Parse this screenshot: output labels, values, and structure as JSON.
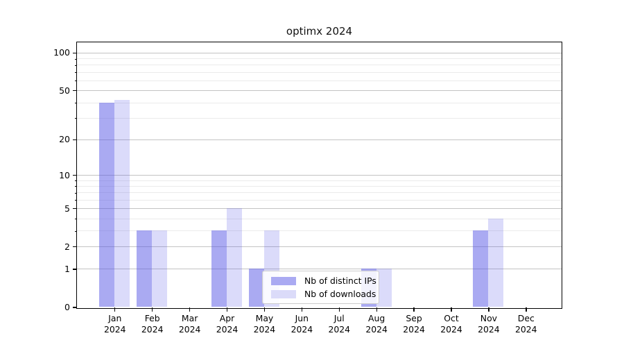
{
  "chart_data": {
    "type": "bar",
    "title": "optimx 2024",
    "categories": [
      "Jan\n2024",
      "Feb\n2024",
      "Mar\n2024",
      "Apr\n2024",
      "May\n2024",
      "Jun\n2024",
      "Jul\n2024",
      "Aug\n2024",
      "Sep\n2024",
      "Oct\n2024",
      "Nov\n2024",
      "Dec\n2024"
    ],
    "series": [
      {
        "name": "Nb of distinct IPs",
        "color": "rgba(85,85,230,0.5)",
        "color_on_white": "#aaaaf2",
        "values": [
          40,
          3,
          0,
          3,
          1,
          0,
          0,
          1,
          0,
          0,
          3,
          0
        ]
      },
      {
        "name": "Nb of downloads",
        "color": "rgba(85,85,230,0.21)",
        "color_on_white": "#dbdbf9",
        "values": [
          42,
          3,
          0,
          5,
          3,
          0,
          0,
          1,
          0,
          0,
          4,
          0
        ]
      }
    ],
    "y_axis": {
      "ticks": [
        0,
        1,
        2,
        5,
        10,
        20,
        50,
        100
      ],
      "minor_ticks": [
        3,
        4,
        6,
        7,
        8,
        9,
        30,
        40,
        60,
        70,
        80,
        90
      ],
      "scale": "log10(value+1)",
      "ylim": [
        0,
        124
      ]
    },
    "xlabel": "",
    "ylabel": "",
    "grid": "on",
    "legend_position": "lower center"
  }
}
